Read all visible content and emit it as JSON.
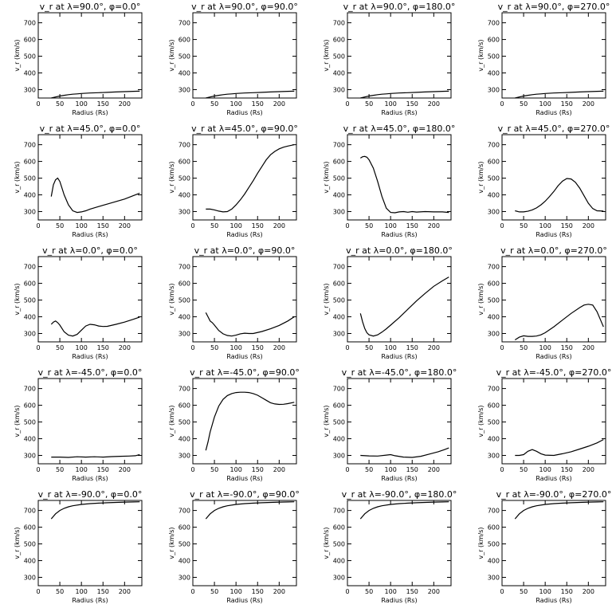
{
  "chart_data": [
    {
      "type": "line",
      "title": "v_r at λ=90.0°, φ=0.0°",
      "xlabel": "Radius (Rs)",
      "ylabel": "v_r (km/s)",
      "xlim": [
        0,
        240
      ],
      "ylim": [
        250,
        760
      ],
      "xticks": [
        0,
        50,
        100,
        150,
        200
      ],
      "yticks": [
        300,
        400,
        500,
        600,
        700
      ],
      "x": [
        30,
        40,
        50,
        60,
        70,
        80,
        90,
        100,
        120,
        140,
        160,
        180,
        200,
        220,
        235
      ],
      "y": [
        250,
        256,
        262,
        266,
        270,
        273,
        275,
        277,
        280,
        282,
        284,
        286,
        288,
        290,
        291
      ]
    },
    {
      "type": "line",
      "title": "v_r at λ=90.0°, φ=90.0°",
      "xlabel": "Radius (Rs)",
      "ylabel": "v_r (km/s)",
      "xlim": [
        0,
        240
      ],
      "ylim": [
        250,
        760
      ],
      "xticks": [
        0,
        50,
        100,
        150,
        200
      ],
      "yticks": [
        300,
        400,
        500,
        600,
        700
      ],
      "x": [
        30,
        40,
        50,
        60,
        70,
        80,
        90,
        100,
        120,
        140,
        160,
        180,
        200,
        220,
        235
      ],
      "y": [
        250,
        256,
        262,
        266,
        270,
        273,
        275,
        277,
        280,
        282,
        284,
        286,
        288,
        290,
        291
      ]
    },
    {
      "type": "line",
      "title": "v_r at λ=90.0°, φ=180.0°",
      "xlabel": "Radius (Rs)",
      "ylabel": "v_r (km/s)",
      "xlim": [
        0,
        240
      ],
      "ylim": [
        250,
        760
      ],
      "xticks": [
        0,
        50,
        100,
        150,
        200
      ],
      "yticks": [
        300,
        400,
        500,
        600,
        700
      ],
      "x": [
        30,
        40,
        50,
        60,
        70,
        80,
        90,
        100,
        120,
        140,
        160,
        180,
        200,
        220,
        235
      ],
      "y": [
        250,
        256,
        262,
        266,
        270,
        273,
        275,
        277,
        280,
        282,
        284,
        286,
        288,
        290,
        291
      ]
    },
    {
      "type": "line",
      "title": "v_r at λ=90.0°, φ=270.0°",
      "xlabel": "Radius (Rs)",
      "ylabel": "v_r (km/s)",
      "xlim": [
        0,
        240
      ],
      "ylim": [
        250,
        760
      ],
      "xticks": [
        0,
        50,
        100,
        150,
        200
      ],
      "yticks": [
        300,
        400,
        500,
        600,
        700
      ],
      "x": [
        30,
        40,
        50,
        60,
        70,
        80,
        90,
        100,
        120,
        140,
        160,
        180,
        200,
        220,
        235
      ],
      "y": [
        250,
        256,
        262,
        266,
        270,
        273,
        275,
        277,
        280,
        282,
        284,
        286,
        288,
        290,
        291
      ]
    },
    {
      "type": "line",
      "title": "v_r at λ=45.0°, φ=0.0°",
      "xlabel": "Radius (Rs)",
      "ylabel": "v_r (km/s)",
      "xlim": [
        0,
        240
      ],
      "ylim": [
        250,
        760
      ],
      "xticks": [
        0,
        50,
        100,
        150,
        200
      ],
      "yticks": [
        300,
        400,
        500,
        600,
        700
      ],
      "x": [
        30,
        35,
        40,
        45,
        50,
        55,
        60,
        70,
        80,
        90,
        100,
        110,
        120,
        140,
        160,
        180,
        200,
        220,
        235
      ],
      "y": [
        390,
        460,
        490,
        500,
        480,
        440,
        400,
        340,
        305,
        295,
        298,
        305,
        315,
        330,
        345,
        360,
        375,
        395,
        410
      ]
    },
    {
      "type": "line",
      "title": "v_r at λ=45.0°, φ=90.0°",
      "xlabel": "Radius (Rs)",
      "ylabel": "v_r (km/s)",
      "xlim": [
        0,
        240
      ],
      "ylim": [
        250,
        760
      ],
      "xticks": [
        0,
        50,
        100,
        150,
        200
      ],
      "yticks": [
        300,
        400,
        500,
        600,
        700
      ],
      "x": [
        30,
        40,
        50,
        60,
        70,
        80,
        90,
        100,
        110,
        120,
        130,
        140,
        150,
        160,
        170,
        180,
        190,
        200,
        210,
        220,
        235
      ],
      "y": [
        315,
        315,
        310,
        303,
        298,
        300,
        315,
        340,
        370,
        405,
        445,
        485,
        530,
        570,
        610,
        640,
        660,
        675,
        685,
        692,
        700
      ]
    },
    {
      "type": "line",
      "title": "v_r at λ=45.0°, φ=180.0°",
      "xlabel": "Radius (Rs)",
      "ylabel": "v_r (km/s)",
      "xlim": [
        0,
        240
      ],
      "ylim": [
        250,
        760
      ],
      "xticks": [
        0,
        50,
        100,
        150,
        200
      ],
      "yticks": [
        300,
        400,
        500,
        600,
        700
      ],
      "x": [
        30,
        35,
        40,
        45,
        50,
        60,
        70,
        80,
        90,
        100,
        110,
        120,
        130,
        140,
        150,
        160,
        180,
        200,
        220,
        235
      ],
      "y": [
        620,
        628,
        630,
        625,
        610,
        560,
        480,
        390,
        320,
        295,
        293,
        298,
        300,
        296,
        300,
        297,
        300,
        298,
        298,
        295
      ]
    },
    {
      "type": "line",
      "title": "v_r at λ=45.0°, φ=270.0°",
      "xlabel": "Radius (Rs)",
      "ylabel": "v_r (km/s)",
      "xlim": [
        0,
        240
      ],
      "ylim": [
        250,
        760
      ],
      "xticks": [
        0,
        50,
        100,
        150,
        200
      ],
      "yticks": [
        300,
        400,
        500,
        600,
        700
      ],
      "x": [
        30,
        40,
        50,
        60,
        70,
        80,
        90,
        100,
        110,
        120,
        130,
        140,
        150,
        160,
        170,
        180,
        190,
        200,
        210,
        220,
        235
      ],
      "y": [
        305,
        298,
        298,
        302,
        310,
        322,
        340,
        362,
        390,
        420,
        455,
        482,
        498,
        495,
        475,
        440,
        395,
        350,
        318,
        305,
        303
      ]
    },
    {
      "type": "line",
      "title": "v_r at λ=0.0°, φ=0.0°",
      "xlabel": "Radius (Rs)",
      "ylabel": "v_r (km/s)",
      "xlim": [
        0,
        240
      ],
      "ylim": [
        250,
        760
      ],
      "xticks": [
        0,
        50,
        100,
        150,
        200
      ],
      "yticks": [
        300,
        400,
        500,
        600,
        700
      ],
      "x": [
        30,
        35,
        40,
        45,
        50,
        60,
        70,
        80,
        90,
        100,
        110,
        120,
        130,
        140,
        150,
        160,
        180,
        200,
        220,
        235
      ],
      "y": [
        355,
        368,
        375,
        365,
        350,
        310,
        290,
        285,
        295,
        320,
        345,
        355,
        352,
        345,
        342,
        343,
        355,
        368,
        385,
        398
      ]
    },
    {
      "type": "line",
      "title": "v_r at λ=0.0°, φ=90.0°",
      "xlabel": "Radius (Rs)",
      "ylabel": "v_r (km/s)",
      "xlim": [
        0,
        240
      ],
      "ylim": [
        250,
        760
      ],
      "xticks": [
        0,
        50,
        100,
        150,
        200
      ],
      "yticks": [
        300,
        400,
        500,
        600,
        700
      ],
      "x": [
        30,
        35,
        40,
        45,
        50,
        60,
        70,
        80,
        90,
        100,
        110,
        120,
        130,
        140,
        160,
        180,
        200,
        220,
        235
      ],
      "y": [
        425,
        400,
        375,
        365,
        350,
        318,
        298,
        288,
        285,
        290,
        298,
        302,
        300,
        300,
        312,
        328,
        348,
        375,
        400
      ]
    },
    {
      "type": "line",
      "title": "v_r at λ=0.0°, φ=180.0°",
      "xlabel": "Radius (Rs)",
      "ylabel": "v_r (km/s)",
      "xlim": [
        0,
        240
      ],
      "ylim": [
        250,
        760
      ],
      "xticks": [
        0,
        50,
        100,
        150,
        200
      ],
      "yticks": [
        300,
        400,
        500,
        600,
        700
      ],
      "x": [
        30,
        35,
        40,
        45,
        50,
        60,
        70,
        80,
        90,
        100,
        120,
        140,
        160,
        180,
        200,
        220,
        235
      ],
      "y": [
        420,
        370,
        330,
        305,
        292,
        285,
        292,
        308,
        328,
        350,
        395,
        445,
        495,
        540,
        582,
        615,
        638
      ]
    },
    {
      "type": "line",
      "title": "v_r at λ=0.0°, φ=270.0°",
      "xlabel": "Radius (Rs)",
      "ylabel": "v_r (km/s)",
      "xlim": [
        0,
        240
      ],
      "ylim": [
        250,
        760
      ],
      "xticks": [
        0,
        50,
        100,
        150,
        200
      ],
      "yticks": [
        300,
        400,
        500,
        600,
        700
      ],
      "x": [
        30,
        40,
        50,
        60,
        70,
        80,
        90,
        100,
        120,
        140,
        160,
        180,
        190,
        200,
        210,
        220,
        230,
        235
      ],
      "y": [
        262,
        278,
        286,
        283,
        283,
        285,
        292,
        305,
        340,
        380,
        420,
        455,
        470,
        475,
        470,
        430,
        370,
        340
      ]
    },
    {
      "type": "line",
      "title": "v_r at λ=-45.0°, φ=0.0°",
      "xlabel": "Radius (Rs)",
      "ylabel": "v_r (km/s)",
      "xlim": [
        0,
        240
      ],
      "ylim": [
        250,
        760
      ],
      "xticks": [
        0,
        50,
        100,
        150,
        200
      ],
      "yticks": [
        300,
        400,
        500,
        600,
        700
      ],
      "x": [
        30,
        50,
        70,
        90,
        110,
        130,
        150,
        170,
        190,
        210,
        225,
        235
      ],
      "y": [
        290,
        290,
        288,
        292,
        290,
        292,
        290,
        293,
        295,
        296,
        298,
        305
      ]
    },
    {
      "type": "line",
      "title": "v_r at λ=-45.0°, φ=90.0°",
      "xlabel": "Radius (Rs)",
      "ylabel": "v_r (km/s)",
      "xlim": [
        0,
        240
      ],
      "ylim": [
        250,
        760
      ],
      "xticks": [
        0,
        50,
        100,
        150,
        200
      ],
      "yticks": [
        300,
        400,
        500,
        600,
        700
      ],
      "x": [
        30,
        35,
        40,
        50,
        60,
        70,
        80,
        90,
        100,
        110,
        120,
        130,
        140,
        150,
        160,
        170,
        180,
        190,
        200,
        210,
        220,
        235
      ],
      "y": [
        330,
        380,
        440,
        530,
        595,
        635,
        658,
        670,
        676,
        678,
        678,
        676,
        670,
        660,
        645,
        630,
        615,
        608,
        605,
        606,
        610,
        618
      ]
    },
    {
      "type": "line",
      "title": "v_r at λ=-45.0°, φ=180.0°",
      "xlabel": "Radius (Rs)",
      "ylabel": "v_r (km/s)",
      "xlim": [
        0,
        240
      ],
      "ylim": [
        250,
        760
      ],
      "xticks": [
        0,
        50,
        100,
        150,
        200
      ],
      "yticks": [
        300,
        400,
        500,
        600,
        700
      ],
      "x": [
        30,
        50,
        70,
        90,
        100,
        110,
        130,
        150,
        170,
        190,
        210,
        225,
        235
      ],
      "y": [
        300,
        297,
        296,
        302,
        305,
        298,
        290,
        288,
        295,
        308,
        322,
        335,
        345
      ]
    },
    {
      "type": "line",
      "title": "v_r at λ=-45.0°, φ=270.0°",
      "xlabel": "Radius (Rs)",
      "ylabel": "v_r (km/s)",
      "xlim": [
        0,
        240
      ],
      "ylim": [
        250,
        760
      ],
      "xticks": [
        0,
        50,
        100,
        150,
        200
      ],
      "yticks": [
        300,
        400,
        500,
        600,
        700
      ],
      "x": [
        30,
        40,
        50,
        60,
        70,
        80,
        90,
        100,
        120,
        140,
        160,
        180,
        200,
        220,
        235
      ],
      "y": [
        300,
        300,
        305,
        325,
        335,
        325,
        310,
        302,
        300,
        310,
        322,
        338,
        355,
        375,
        395
      ]
    },
    {
      "type": "line",
      "title": "v_r at λ=-90.0°, φ=0.0°",
      "xlabel": "Radius (Rs)",
      "ylabel": "v_r (km/s)",
      "xlim": [
        0,
        240
      ],
      "ylim": [
        250,
        760
      ],
      "xticks": [
        0,
        50,
        100,
        150,
        200
      ],
      "yticks": [
        300,
        400,
        500,
        600,
        700
      ],
      "x": [
        30,
        40,
        50,
        60,
        70,
        80,
        100,
        120,
        140,
        160,
        180,
        200,
        220,
        235
      ],
      "y": [
        650,
        680,
        700,
        713,
        722,
        728,
        736,
        741,
        744,
        746,
        748,
        750,
        751,
        752
      ]
    },
    {
      "type": "line",
      "title": "v_r at λ=-90.0°, φ=90.0°",
      "xlabel": "Radius (Rs)",
      "ylabel": "v_r (km/s)",
      "xlim": [
        0,
        240
      ],
      "ylim": [
        250,
        760
      ],
      "xticks": [
        0,
        50,
        100,
        150,
        200
      ],
      "yticks": [
        300,
        400,
        500,
        600,
        700
      ],
      "x": [
        30,
        40,
        50,
        60,
        70,
        80,
        100,
        120,
        140,
        160,
        180,
        200,
        220,
        235
      ],
      "y": [
        650,
        680,
        700,
        713,
        722,
        728,
        736,
        741,
        744,
        746,
        748,
        750,
        751,
        752
      ]
    },
    {
      "type": "line",
      "title": "v_r at λ=-90.0°, φ=180.0°",
      "xlabel": "Radius (Rs)",
      "ylabel": "v_r (km/s)",
      "xlim": [
        0,
        240
      ],
      "ylim": [
        250,
        760
      ],
      "xticks": [
        0,
        50,
        100,
        150,
        200
      ],
      "yticks": [
        300,
        400,
        500,
        600,
        700
      ],
      "x": [
        30,
        40,
        50,
        60,
        70,
        80,
        100,
        120,
        140,
        160,
        180,
        200,
        220,
        235
      ],
      "y": [
        650,
        680,
        700,
        713,
        722,
        728,
        736,
        741,
        744,
        746,
        748,
        750,
        751,
        752
      ]
    },
    {
      "type": "line",
      "title": "v_r at λ=-90.0°, φ=270.0°",
      "xlabel": "Radius (Rs)",
      "ylabel": "v_r (km/s)",
      "xlim": [
        0,
        240
      ],
      "ylim": [
        250,
        760
      ],
      "xticks": [
        0,
        50,
        100,
        150,
        200
      ],
      "yticks": [
        300,
        400,
        500,
        600,
        700
      ],
      "x": [
        30,
        40,
        50,
        60,
        70,
        80,
        100,
        120,
        140,
        160,
        180,
        200,
        220,
        235
      ],
      "y": [
        650,
        680,
        700,
        713,
        722,
        728,
        736,
        741,
        744,
        746,
        748,
        750,
        751,
        752
      ]
    }
  ]
}
